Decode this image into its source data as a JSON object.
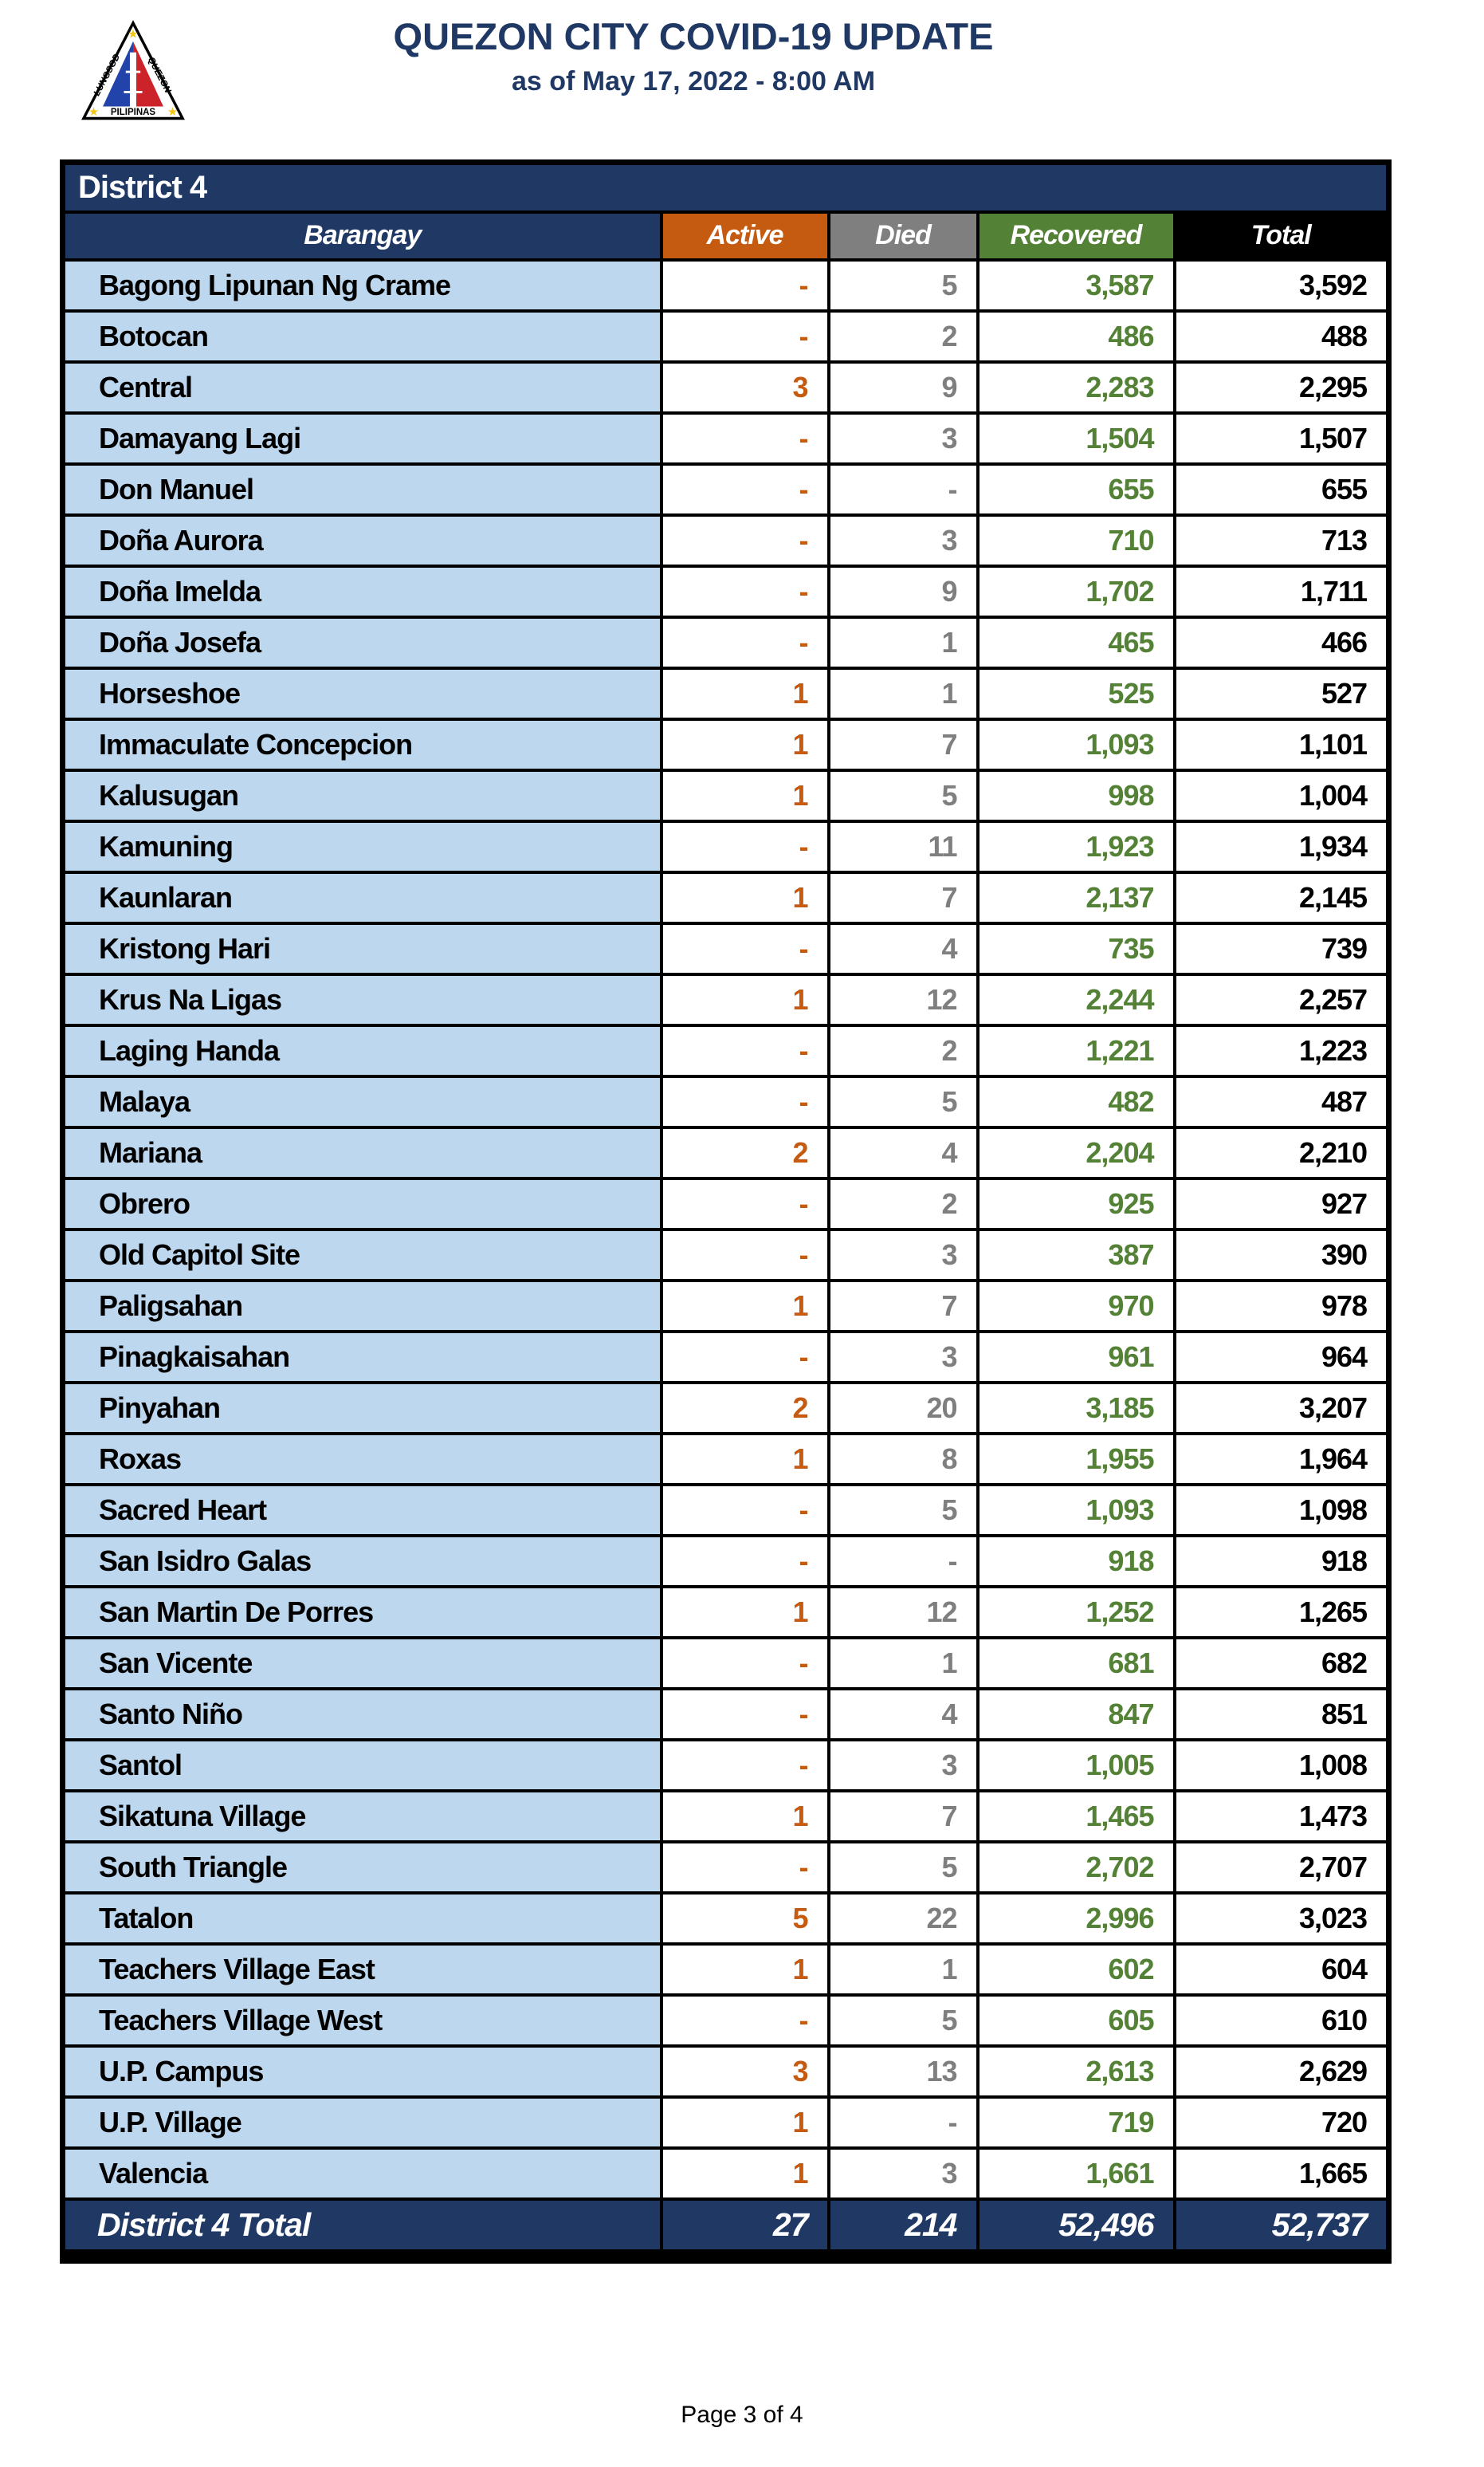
{
  "header": {
    "title": "QUEZON CITY COVID-19 UPDATE",
    "subtitle": "as of May 17, 2022 - 8:00 AM",
    "logo": {
      "name": "quezon-city-seal",
      "text_left": "LUNGSOD",
      "text_right": "QUEZON",
      "text_bottom": "PILIPINAS"
    }
  },
  "colors": {
    "navy": "#1F3864",
    "active": "#C55A11",
    "died": "#7F7F7F",
    "recovered": "#538135",
    "total": "#000000",
    "row_blue": "#BDD7EE"
  },
  "table": {
    "district_label": "District 4",
    "columns": [
      "Barangay",
      "Active",
      "Died",
      "Recovered",
      "Total"
    ],
    "rows": [
      {
        "barangay": "Bagong Lipunan Ng Crame",
        "active": "-",
        "died": "5",
        "recovered": "3,587",
        "total": "3,592"
      },
      {
        "barangay": "Botocan",
        "active": "-",
        "died": "2",
        "recovered": "486",
        "total": "488"
      },
      {
        "barangay": "Central",
        "active": "3",
        "died": "9",
        "recovered": "2,283",
        "total": "2,295"
      },
      {
        "barangay": "Damayang Lagi",
        "active": "-",
        "died": "3",
        "recovered": "1,504",
        "total": "1,507"
      },
      {
        "barangay": "Don Manuel",
        "active": "-",
        "died": "-",
        "recovered": "655",
        "total": "655"
      },
      {
        "barangay": "Doña Aurora",
        "active": "-",
        "died": "3",
        "recovered": "710",
        "total": "713"
      },
      {
        "barangay": "Doña Imelda",
        "active": "-",
        "died": "9",
        "recovered": "1,702",
        "total": "1,711"
      },
      {
        "barangay": "Doña Josefa",
        "active": "-",
        "died": "1",
        "recovered": "465",
        "total": "466"
      },
      {
        "barangay": "Horseshoe",
        "active": "1",
        "died": "1",
        "recovered": "525",
        "total": "527"
      },
      {
        "barangay": "Immaculate Concepcion",
        "active": "1",
        "died": "7",
        "recovered": "1,093",
        "total": "1,101"
      },
      {
        "barangay": "Kalusugan",
        "active": "1",
        "died": "5",
        "recovered": "998",
        "total": "1,004"
      },
      {
        "barangay": "Kamuning",
        "active": "-",
        "died": "11",
        "recovered": "1,923",
        "total": "1,934"
      },
      {
        "barangay": "Kaunlaran",
        "active": "1",
        "died": "7",
        "recovered": "2,137",
        "total": "2,145"
      },
      {
        "barangay": "Kristong Hari",
        "active": "-",
        "died": "4",
        "recovered": "735",
        "total": "739"
      },
      {
        "barangay": "Krus Na Ligas",
        "active": "1",
        "died": "12",
        "recovered": "2,244",
        "total": "2,257"
      },
      {
        "barangay": "Laging Handa",
        "active": "-",
        "died": "2",
        "recovered": "1,221",
        "total": "1,223"
      },
      {
        "barangay": "Malaya",
        "active": "-",
        "died": "5",
        "recovered": "482",
        "total": "487"
      },
      {
        "barangay": "Mariana",
        "active": "2",
        "died": "4",
        "recovered": "2,204",
        "total": "2,210"
      },
      {
        "barangay": "Obrero",
        "active": "-",
        "died": "2",
        "recovered": "925",
        "total": "927"
      },
      {
        "barangay": "Old Capitol Site",
        "active": "-",
        "died": "3",
        "recovered": "387",
        "total": "390"
      },
      {
        "barangay": "Paligsahan",
        "active": "1",
        "died": "7",
        "recovered": "970",
        "total": "978"
      },
      {
        "barangay": "Pinagkaisahan",
        "active": "-",
        "died": "3",
        "recovered": "961",
        "total": "964"
      },
      {
        "barangay": "Pinyahan",
        "active": "2",
        "died": "20",
        "recovered": "3,185",
        "total": "3,207"
      },
      {
        "barangay": "Roxas",
        "active": "1",
        "died": "8",
        "recovered": "1,955",
        "total": "1,964"
      },
      {
        "barangay": "Sacred Heart",
        "active": "-",
        "died": "5",
        "recovered": "1,093",
        "total": "1,098"
      },
      {
        "barangay": "San Isidro Galas",
        "active": "-",
        "died": "-",
        "recovered": "918",
        "total": "918"
      },
      {
        "barangay": "San Martin De Porres",
        "active": "1",
        "died": "12",
        "recovered": "1,252",
        "total": "1,265"
      },
      {
        "barangay": "San Vicente",
        "active": "-",
        "died": "1",
        "recovered": "681",
        "total": "682"
      },
      {
        "barangay": "Santo Niño",
        "active": "-",
        "died": "4",
        "recovered": "847",
        "total": "851"
      },
      {
        "barangay": "Santol",
        "active": "-",
        "died": "3",
        "recovered": "1,005",
        "total": "1,008"
      },
      {
        "barangay": "Sikatuna Village",
        "active": "1",
        "died": "7",
        "recovered": "1,465",
        "total": "1,473"
      },
      {
        "barangay": "South Triangle",
        "active": "-",
        "died": "5",
        "recovered": "2,702",
        "total": "2,707"
      },
      {
        "barangay": "Tatalon",
        "active": "5",
        "died": "22",
        "recovered": "2,996",
        "total": "3,023"
      },
      {
        "barangay": "Teachers Village East",
        "active": "1",
        "died": "1",
        "recovered": "602",
        "total": "604"
      },
      {
        "barangay": "Teachers Village West",
        "active": "-",
        "died": "5",
        "recovered": "605",
        "total": "610"
      },
      {
        "barangay": "U.P. Campus",
        "active": "3",
        "died": "13",
        "recovered": "2,613",
        "total": "2,629"
      },
      {
        "barangay": "U.P. Village",
        "active": "1",
        "died": "-",
        "recovered": "719",
        "total": "720"
      },
      {
        "barangay": "Valencia",
        "active": "1",
        "died": "3",
        "recovered": "1,661",
        "total": "1,665"
      }
    ],
    "total_row": {
      "label": "District 4 Total",
      "active": "27",
      "died": "214",
      "recovered": "52,496",
      "total": "52,737"
    }
  },
  "footer": {
    "page_label": "Page 3 of 4"
  }
}
